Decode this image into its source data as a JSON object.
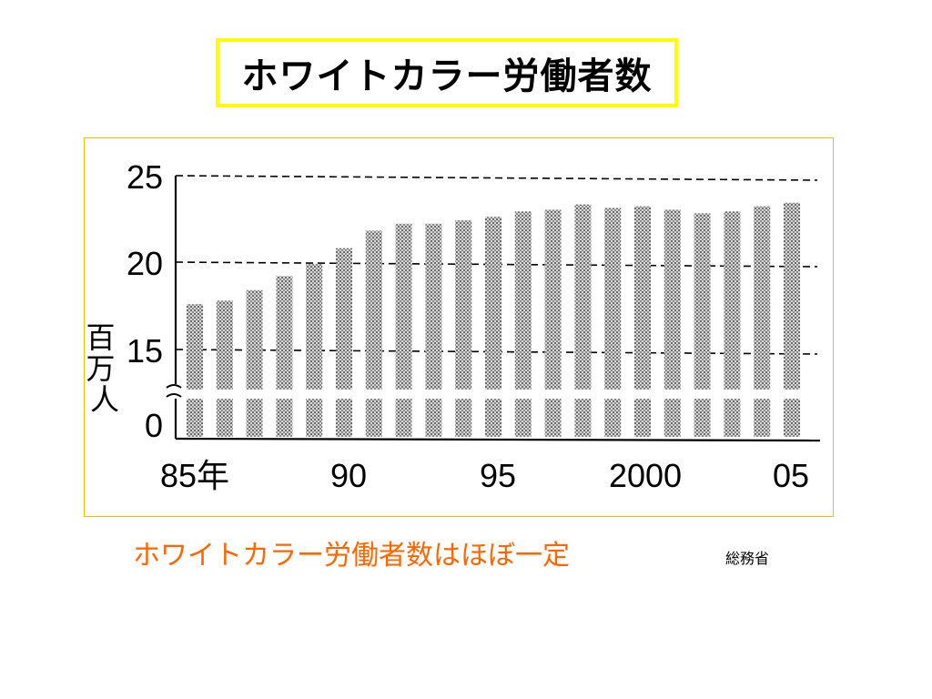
{
  "slide": {
    "title": "ホワイトカラー労働者数",
    "caption": "ホワイトカラー労働者数はほぼ一定",
    "source": "総務省"
  },
  "colors": {
    "title_border": "#ffff00",
    "frame_border": "#f2c200",
    "caption": "#ff6600",
    "bar_fill": "#9a9a9a"
  },
  "chart_data": {
    "type": "bar",
    "ylabel": "百万人",
    "y_ticks": [
      "25",
      "20",
      "15",
      "0"
    ],
    "x_tick_labels": [
      "85年",
      "90",
      "95",
      "2000",
      "05"
    ],
    "broken_axis": true,
    "ylim": [
      0,
      25
    ],
    "grid": "dashed horizontal at 15, 20, 25",
    "categories": [
      "1985",
      "1986",
      "1987",
      "1988",
      "1989",
      "1990",
      "1991",
      "1992",
      "1993",
      "1994",
      "1995",
      "1996",
      "1997",
      "1998",
      "1999",
      "2000",
      "2001",
      "2002",
      "2003",
      "2004",
      "2005"
    ],
    "values": [
      17.6,
      17.8,
      18.4,
      19.2,
      19.9,
      20.8,
      21.8,
      22.2,
      22.2,
      22.4,
      22.6,
      22.9,
      23.0,
      23.3,
      23.1,
      23.2,
      23.0,
      22.8,
      22.9,
      23.2,
      23.4
    ]
  }
}
